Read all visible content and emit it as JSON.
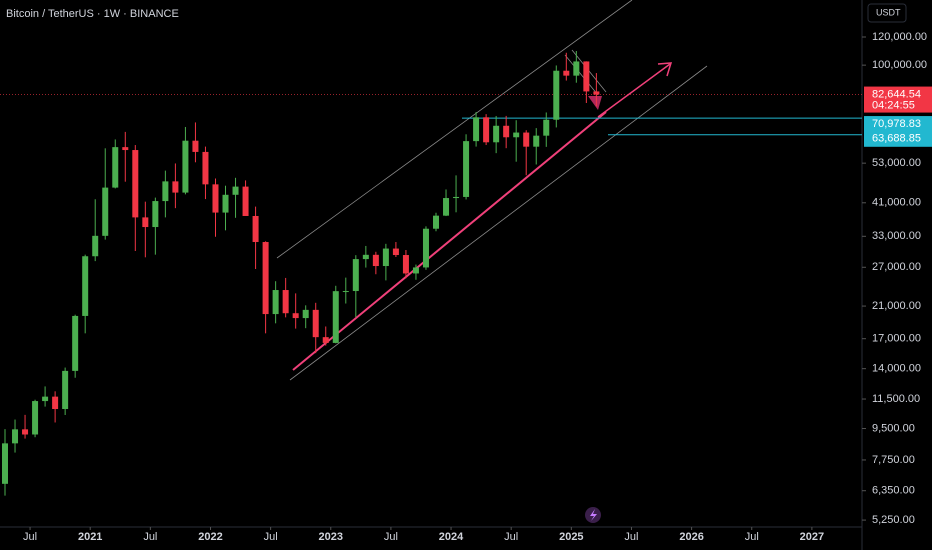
{
  "chart_data": {
    "type": "candlestick",
    "title": "Bitcoin / TetherUS · 1W · BINANCE",
    "currency": "USDT",
    "log_scale": true,
    "up_color": "#4caf50",
    "down_color": "#f23645",
    "x": [
      "2020-04",
      "2020-05",
      "2020-06",
      "2020-07",
      "2020-08",
      "2020-09",
      "2020-10",
      "2020-11",
      "2020-12",
      "2021-01",
      "2021-02",
      "2021-03",
      "2021-04",
      "2021-05",
      "2021-06",
      "2021-07",
      "2021-08",
      "2021-09",
      "2021-10",
      "2021-11",
      "2021-12",
      "2022-01",
      "2022-02",
      "2022-03",
      "2022-04",
      "2022-05",
      "2022-06",
      "2022-07",
      "2022-08",
      "2022-09",
      "2022-10",
      "2022-11",
      "2022-12",
      "2023-01",
      "2023-02",
      "2023-03",
      "2023-04",
      "2023-05",
      "2023-06",
      "2023-07",
      "2023-08",
      "2023-09",
      "2023-10",
      "2023-11",
      "2023-12",
      "2024-01",
      "2024-02",
      "2024-03",
      "2024-04",
      "2024-05",
      "2024-06",
      "2024-07",
      "2024-08",
      "2024-09",
      "2024-10",
      "2024-11",
      "2024-12",
      "2025-01",
      "2025-02",
      "2025-03"
    ],
    "open": [
      6640,
      8630,
      9450,
      9140,
      11350,
      11680,
      10780,
      13800,
      19700,
      29000,
      33100,
      45240,
      58800,
      57700,
      37300,
      35040,
      41460,
      47100,
      43800,
      61300,
      57000,
      46200,
      38480,
      43180,
      45530,
      37640,
      31800,
      19940,
      23300,
      20050,
      19430,
      20490,
      17170,
      16540,
      23130,
      23150,
      28470,
      29270,
      27220,
      30480,
      29230,
      25940,
      26970,
      34660,
      37720,
      42280,
      42580,
      61130,
      71330,
      60670,
      67520,
      62680,
      64620,
      58970,
      63330,
      70220,
      96450,
      93430,
      102430,
      84350
    ],
    "high": [
      9460,
      10070,
      10380,
      11450,
      12480,
      12090,
      14100,
      19860,
      29300,
      41950,
      58350,
      61800,
      64900,
      59600,
      41300,
      42400,
      50500,
      52900,
      67000,
      69000,
      59000,
      47990,
      45800,
      48200,
      47400,
      40000,
      31950,
      24670,
      25200,
      22800,
      21100,
      21450,
      18400,
      23950,
      25250,
      29200,
      31000,
      29850,
      31430,
      31800,
      30200,
      27480,
      35200,
      38430,
      44700,
      48970,
      63900,
      73800,
      72800,
      71950,
      71980,
      70000,
      65600,
      66500,
      73600,
      99800,
      108350,
      109600,
      102500,
      95000
    ],
    "low": [
      6150,
      8130,
      8900,
      8980,
      10950,
      9880,
      10370,
      13200,
      17600,
      28100,
      32300,
      45000,
      47000,
      30000,
      28800,
      29300,
      37300,
      39600,
      43300,
      53300,
      42000,
      32900,
      34300,
      37200,
      37700,
      26700,
      17600,
      18780,
      19520,
      18150,
      18200,
      15480,
      16260,
      16500,
      21350,
      19550,
      26950,
      25810,
      24800,
      28860,
      25150,
      24900,
      26560,
      34100,
      37620,
      38550,
      41900,
      59000,
      59600,
      56550,
      58400,
      53500,
      49000,
      52550,
      58900,
      66800,
      90500,
      89250,
      78250,
      76600
    ],
    "close": [
      8630,
      9450,
      9140,
      11350,
      11680,
      10780,
      13800,
      19700,
      29000,
      33100,
      45240,
      58800,
      57700,
      37300,
      35040,
      41460,
      47100,
      43800,
      61300,
      57000,
      46200,
      38480,
      43180,
      45530,
      37640,
      31800,
      19940,
      23300,
      20050,
      19430,
      20490,
      17170,
      16540,
      23130,
      23150,
      28470,
      29270,
      27220,
      30480,
      29230,
      25940,
      26970,
      34660,
      37720,
      42280,
      42580,
      61130,
      71330,
      60670,
      67520,
      62680,
      64620,
      58970,
      63330,
      70220,
      96450,
      93430,
      102430,
      84350,
      82644.54
    ],
    "xlim": [
      "2020-04",
      "2027-06"
    ],
    "xticks": [
      {
        "value": "2020-07",
        "label": "Jul"
      },
      {
        "value": "2021-01",
        "label": "2021"
      },
      {
        "value": "2021-07",
        "label": "Jul"
      },
      {
        "value": "2022-01",
        "label": "2022"
      },
      {
        "value": "2022-07",
        "label": "Jul"
      },
      {
        "value": "2023-01",
        "label": "2023"
      },
      {
        "value": "2023-07",
        "label": "Jul"
      },
      {
        "value": "2024-01",
        "label": "2024"
      },
      {
        "value": "2024-07",
        "label": "Jul"
      },
      {
        "value": "2025-01",
        "label": "2025"
      },
      {
        "value": "2025-07",
        "label": "Jul"
      },
      {
        "value": "2026-01",
        "label": "2026"
      },
      {
        "value": "2026-07",
        "label": "Jul"
      },
      {
        "value": "2027-01",
        "label": "2027"
      }
    ],
    "ylim": [
      5020,
      152500
    ],
    "yticks": [
      {
        "value": 120000,
        "label": "120,000.00"
      },
      {
        "value": 100000,
        "label": "100,000.00"
      },
      {
        "value": 53000,
        "label": "53,000.00"
      },
      {
        "value": 41000,
        "label": "41,000.00"
      },
      {
        "value": 33000,
        "label": "33,000.00"
      },
      {
        "value": 27000,
        "label": "27,000.00"
      },
      {
        "value": 21000,
        "label": "21,000.00"
      },
      {
        "value": 17000,
        "label": "17,000.00"
      },
      {
        "value": 14000,
        "label": "14,000.00"
      },
      {
        "value": 11500,
        "label": "11,500.00"
      },
      {
        "value": 9500,
        "label": "9,500.00"
      },
      {
        "value": 7750,
        "label": "7,750.00"
      },
      {
        "value": 6350,
        "label": "6,350.00"
      },
      {
        "value": 5250,
        "label": "5,250.00"
      }
    ],
    "last_price": {
      "value": 82644.54,
      "label": "82,644.54"
    },
    "countdown": "04:24:55",
    "levels": [
      {
        "value": 70978.83,
        "label": "70,978.83"
      },
      {
        "value": 63688.85,
        "label": "63,688.85"
      }
    ]
  }
}
